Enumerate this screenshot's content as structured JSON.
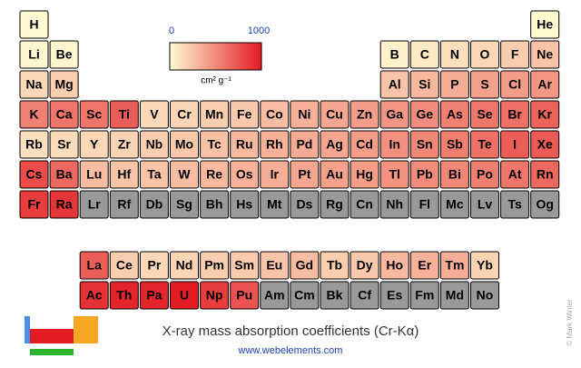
{
  "chart_data": {
    "type": "heatmap",
    "title": "X-ray mass absorption coefficients (Cr-Kα)",
    "subtitle": "www.webelements.com",
    "credit": "© Mark Winter",
    "colorbar": {
      "ticks": [
        0,
        1000
      ],
      "unit": "cm² g⁻¹",
      "low_color": "#fffbd2",
      "high_color": "#e31b23"
    },
    "missing_color": "#999999",
    "rows": [
      [
        "H",
        null,
        null,
        null,
        null,
        null,
        null,
        null,
        null,
        null,
        null,
        null,
        null,
        null,
        null,
        null,
        null,
        "He"
      ],
      [
        "Li",
        "Be",
        null,
        null,
        null,
        null,
        null,
        null,
        null,
        null,
        null,
        null,
        "B",
        "C",
        "N",
        "O",
        "F",
        "Ne"
      ],
      [
        "Na",
        "Mg",
        null,
        null,
        null,
        null,
        null,
        null,
        null,
        null,
        null,
        null,
        "Al",
        "Si",
        "P",
        "S",
        "Cl",
        "Ar"
      ],
      [
        "K",
        "Ca",
        "Sc",
        "Ti",
        "V",
        "Cr",
        "Mn",
        "Fe",
        "Co",
        "Ni",
        "Cu",
        "Zn",
        "Ga",
        "Ge",
        "As",
        "Se",
        "Br",
        "Kr"
      ],
      [
        "Rb",
        "Sr",
        "Y",
        "Zr",
        "Nb",
        "Mo",
        "Tc",
        "Ru",
        "Rh",
        "Pd",
        "Ag",
        "Cd",
        "In",
        "Sn",
        "Sb",
        "Te",
        "I",
        "Xe"
      ],
      [
        "Cs",
        "Ba",
        "Lu",
        "Hf",
        "Ta",
        "W",
        "Re",
        "Os",
        "Ir",
        "Pt",
        "Au",
        "Hg",
        "Tl",
        "Pb",
        "Bi",
        "Po",
        "At",
        "Rn"
      ],
      [
        "Fr",
        "Ra",
        "Lr",
        "Rf",
        "Db",
        "Sg",
        "Bh",
        "Hs",
        "Mt",
        "Ds",
        "Rg",
        "Cn",
        "Nh",
        "Fl",
        "Mc",
        "Lv",
        "Ts",
        "Og"
      ]
    ],
    "values": [
      [
        5,
        null,
        null,
        null,
        null,
        null,
        null,
        null,
        null,
        null,
        null,
        null,
        null,
        null,
        null,
        null,
        null,
        10
      ],
      [
        20,
        30,
        null,
        null,
        null,
        null,
        null,
        null,
        null,
        null,
        null,
        null,
        50,
        80,
        120,
        160,
        200,
        250
      ],
      [
        150,
        200,
        null,
        null,
        null,
        null,
        null,
        null,
        null,
        null,
        null,
        null,
        250,
        300,
        350,
        400,
        420,
        450
      ],
      [
        550,
        600,
        600,
        700,
        150,
        170,
        200,
        230,
        280,
        330,
        380,
        420,
        450,
        500,
        550,
        600,
        620,
        680
      ],
      [
        120,
        140,
        160,
        180,
        200,
        230,
        260,
        300,
        330,
        360,
        380,
        420,
        480,
        520,
        560,
        620,
        700,
        720
      ],
      [
        780,
        650,
        280,
        250,
        250,
        280,
        300,
        330,
        350,
        380,
        400,
        420,
        470,
        500,
        520,
        560,
        600,
        650
      ],
      [
        850,
        880,
        null,
        null,
        null,
        null,
        null,
        null,
        null,
        null,
        null,
        null,
        null,
        null,
        null,
        null,
        null,
        null
      ]
    ],
    "f_rows": [
      [
        "La",
        "Ce",
        "Pr",
        "Nd",
        "Pm",
        "Sm",
        "Eu",
        "Gd",
        "Tb",
        "Dy",
        "Ho",
        "Er",
        "Tm",
        "Yb"
      ],
      [
        "Ac",
        "Th",
        "Pa",
        "U",
        "Np",
        "Pu",
        "Am",
        "Cm",
        "Bk",
        "Cf",
        "Es",
        "Fm",
        "Md",
        "No"
      ]
    ],
    "f_values": [
      [
        700,
        200,
        150,
        170,
        200,
        220,
        250,
        280,
        200,
        230,
        300,
        330,
        350,
        180
      ],
      [
        900,
        950,
        950,
        1000,
        850,
        750,
        null,
        null,
        null,
        null,
        null,
        null,
        null,
        null
      ]
    ]
  }
}
